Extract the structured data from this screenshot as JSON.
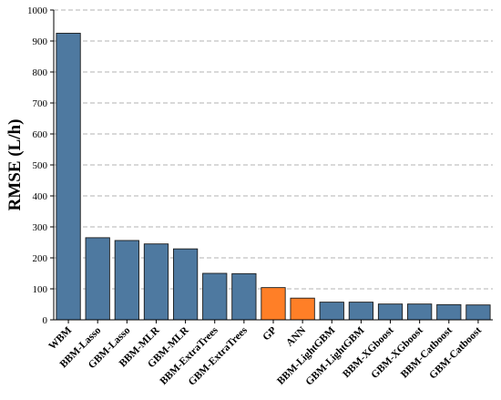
{
  "chart_data": {
    "type": "bar",
    "ylabel": "RMSE (L/h)",
    "ylim": [
      0,
      1000
    ],
    "yticks": [
      0,
      100,
      200,
      300,
      400,
      500,
      600,
      700,
      800,
      900,
      1000
    ],
    "grid": true,
    "categories": [
      "WBM",
      "BBM-Lasso",
      "GBM-Lasso",
      "BBM-MLR",
      "GBM-MLR",
      "BBM-ExtraTrees",
      "GBM-ExtraTrees",
      "GP",
      "ANN",
      "BBM-LightGBM",
      "GBM-LightGBM",
      "BBM-XGboost",
      "GBM-XGboost",
      "BBM-Catboost",
      "GBM-Catboost"
    ],
    "values": [
      925,
      265,
      256,
      245,
      229,
      150,
      149,
      104,
      70,
      57,
      57,
      51,
      51,
      49,
      48
    ],
    "colors": {
      "default": "#4e79a0",
      "highlight": "#ff7f27",
      "highlighted_categories": [
        "GP",
        "ANN"
      ]
    }
  }
}
